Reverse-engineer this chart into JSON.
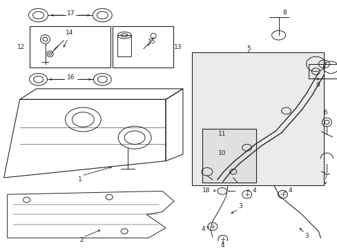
{
  "bg_color": "#ffffff",
  "fig_width": 4.89,
  "fig_height": 3.6,
  "dpi": 100,
  "col": "#222222",
  "gray_box": "#ebebeb",
  "gray_inner": "#e0e0e0"
}
